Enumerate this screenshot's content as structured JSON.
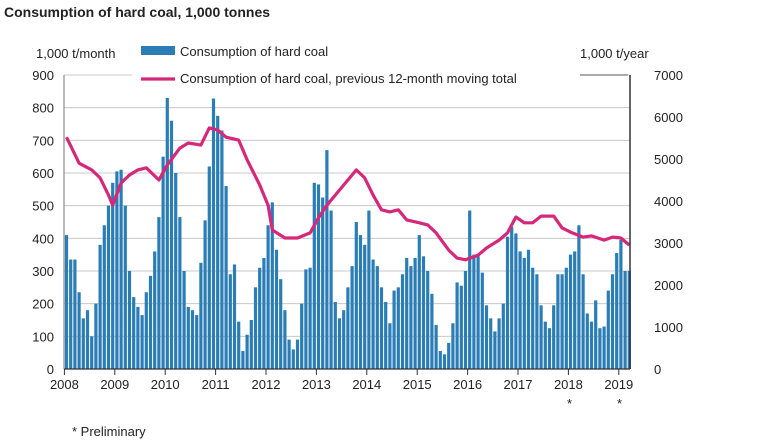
{
  "chart_data": {
    "type": "bar+line",
    "title": "Consumption of hard coal, 1,000 tonnes",
    "ylabel_left": "1,000 t/month",
    "ylabel_right": "1,000 t/year",
    "ylim_left": [
      0,
      900
    ],
    "ylim_right": [
      0,
      7000
    ],
    "yticks_left": [
      "0",
      "100",
      "200",
      "300",
      "400",
      "500",
      "600",
      "700",
      "800",
      "900"
    ],
    "yticks_right": [
      "0",
      "1000",
      "2000",
      "3000",
      "4000",
      "5000",
      "6000",
      "7000"
    ],
    "xticks": [
      "2008",
      "2009",
      "2010",
      "2011",
      "2012",
      "2013",
      "2014",
      "2015",
      "2016",
      "2017",
      "2018",
      "2019"
    ],
    "grid": true,
    "legend_position": "top",
    "start_month": "2008-01",
    "preliminary_marks": [
      "2018",
      "2019"
    ],
    "footnote": "* Preliminary",
    "star": "*",
    "colors": {
      "bars": "#2a7db5",
      "line": "#d6287a",
      "grid": "#c8c8c8"
    },
    "series": [
      {
        "name": "Consumption of hard coal",
        "type": "bar",
        "axis": "left",
        "values": [
          410,
          335,
          335,
          235,
          155,
          180,
          100,
          200,
          380,
          440,
          500,
          570,
          605,
          610,
          500,
          300,
          220,
          190,
          165,
          235,
          285,
          360,
          465,
          650,
          830,
          760,
          600,
          465,
          300,
          190,
          180,
          165,
          325,
          455,
          620,
          828,
          775,
          730,
          560,
          290,
          320,
          145,
          55,
          105,
          150,
          250,
          310,
          340,
          440,
          510,
          365,
          275,
          180,
          90,
          60,
          90,
          200,
          305,
          310,
          570,
          565,
          525,
          670,
          485,
          205,
          155,
          180,
          250,
          315,
          450,
          410,
          380,
          485,
          335,
          315,
          250,
          205,
          140,
          240,
          250,
          290,
          340,
          315,
          340,
          410,
          345,
          300,
          230,
          135,
          55,
          45,
          80,
          140,
          265,
          255,
          300,
          485,
          350,
          345,
          295,
          195,
          155,
          115,
          155,
          200,
          405,
          435,
          415,
          360,
          340,
          365,
          310,
          290,
          195,
          145,
          125,
          195,
          290,
          290,
          310,
          350,
          360,
          440,
          290,
          170,
          145,
          210,
          125,
          130,
          240,
          290,
          355,
          395,
          300,
          300
        ]
      },
      {
        "name": "Consumption of hard coal, previous 12-month moving total",
        "type": "line",
        "axis": "right",
        "points": [
          [
            "2008-01",
            5520
          ],
          [
            "2008-04",
            4900
          ],
          [
            "2008-07",
            4740
          ],
          [
            "2008-09",
            4550
          ],
          [
            "2008-11",
            4140
          ],
          [
            "2008-12",
            3900
          ],
          [
            "2009-02",
            4430
          ],
          [
            "2009-04",
            4620
          ],
          [
            "2009-06",
            4740
          ],
          [
            "2009-08",
            4790
          ],
          [
            "2009-11",
            4500
          ],
          [
            "2010-01",
            4860
          ],
          [
            "2010-04",
            5260
          ],
          [
            "2010-06",
            5380
          ],
          [
            "2010-09",
            5330
          ],
          [
            "2010-11",
            5740
          ],
          [
            "2011-01",
            5690
          ],
          [
            "2011-03",
            5520
          ],
          [
            "2011-06",
            5450
          ],
          [
            "2011-08",
            4980
          ],
          [
            "2011-11",
            4380
          ],
          [
            "2012-01",
            3900
          ],
          [
            "2012-02",
            3310
          ],
          [
            "2012-05",
            3120
          ],
          [
            "2012-08",
            3120
          ],
          [
            "2012-11",
            3240
          ],
          [
            "2013-01",
            3600
          ],
          [
            "2013-03",
            3900
          ],
          [
            "2013-05",
            4140
          ],
          [
            "2013-07",
            4380
          ],
          [
            "2013-09",
            4620
          ],
          [
            "2013-10",
            4740
          ],
          [
            "2013-12",
            4550
          ],
          [
            "2014-02",
            4140
          ],
          [
            "2014-04",
            3790
          ],
          [
            "2014-06",
            3740
          ],
          [
            "2014-08",
            3790
          ],
          [
            "2014-10",
            3550
          ],
          [
            "2015-01",
            3480
          ],
          [
            "2015-03",
            3430
          ],
          [
            "2015-05",
            3240
          ],
          [
            "2015-08",
            2830
          ],
          [
            "2015-10",
            2640
          ],
          [
            "2015-12",
            2600
          ],
          [
            "2016-03",
            2710
          ],
          [
            "2016-05",
            2880
          ],
          [
            "2016-08",
            3070
          ],
          [
            "2016-10",
            3240
          ],
          [
            "2016-11",
            3430
          ],
          [
            "2016-12",
            3620
          ],
          [
            "2017-02",
            3480
          ],
          [
            "2017-04",
            3480
          ],
          [
            "2017-06",
            3640
          ],
          [
            "2017-09",
            3640
          ],
          [
            "2017-11",
            3360
          ],
          [
            "2018-01",
            3260
          ],
          [
            "2018-04",
            3140
          ],
          [
            "2018-06",
            3170
          ],
          [
            "2018-09",
            3070
          ],
          [
            "2018-11",
            3140
          ],
          [
            "2019-01",
            3120
          ],
          [
            "2019-03",
            2950
          ]
        ]
      }
    ]
  }
}
